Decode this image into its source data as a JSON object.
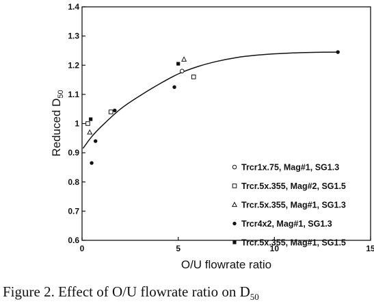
{
  "caption": {
    "prefix": "Figure 2.  Effect of O/U flowrate ratio on D",
    "subscript": "50"
  },
  "chart_data": {
    "type": "scatter",
    "title": "",
    "xlabel": "O/U flowrate ratio",
    "ylabel_main": "Reduced D",
    "ylabel_sub": "50",
    "xlim": [
      0,
      15
    ],
    "ylim": [
      0.6,
      1.4
    ],
    "xticks": [
      0,
      5,
      10,
      15
    ],
    "yticks": [
      0.6,
      0.7,
      0.8,
      0.9,
      1,
      1.1,
      1.2,
      1.3,
      1.4
    ],
    "xtick_labels": [
      "0",
      "5",
      "10",
      "15"
    ],
    "ytick_labels": [
      "0.6",
      "0.7",
      "0.8",
      "0.9",
      "1",
      "1.1",
      "1.2",
      "1.3",
      "1.4"
    ],
    "grid": false,
    "legend_position": "bottom-right",
    "series": [
      {
        "name": "Trcr1x.75, Mag#1, SG1.3",
        "marker": "circle-open",
        "points": [
          [
            5.2,
            1.18
          ]
        ]
      },
      {
        "name": "Trcr.5x.355, Mag#2, SG1.5",
        "marker": "square-open",
        "points": [
          [
            0.3,
            1.0
          ],
          [
            1.5,
            1.04
          ],
          [
            5.8,
            1.16
          ]
        ]
      },
      {
        "name": "Trcr.5x.355, Mag#1, SG1.3",
        "marker": "triangle-open",
        "points": [
          [
            0.4,
            0.97
          ],
          [
            5.3,
            1.22
          ]
        ]
      },
      {
        "name": "Trcr4x2, Mag#1, SG1.3",
        "marker": "circle-filled",
        "points": [
          [
            0.5,
            0.865
          ],
          [
            0.7,
            0.94
          ],
          [
            1.7,
            1.045
          ],
          [
            4.8,
            1.125
          ],
          [
            13.3,
            1.245
          ]
        ]
      },
      {
        "name": "Trcr.5x.355, Mag#1, SG1.5",
        "marker": "square-filled",
        "points": [
          [
            0.45,
            1.015
          ],
          [
            5.0,
            1.205
          ]
        ]
      }
    ],
    "fit_curve": [
      [
        0.05,
        0.915
      ],
      [
        0.5,
        0.955
      ],
      [
        1.0,
        0.99
      ],
      [
        2.0,
        1.05
      ],
      [
        3.0,
        1.095
      ],
      [
        4.0,
        1.135
      ],
      [
        5.0,
        1.17
      ],
      [
        6.0,
        1.195
      ],
      [
        7.0,
        1.213
      ],
      [
        8.0,
        1.226
      ],
      [
        9.0,
        1.234
      ],
      [
        10.0,
        1.239
      ],
      [
        11.0,
        1.242
      ],
      [
        12.0,
        1.244
      ],
      [
        13.3,
        1.245
      ]
    ]
  }
}
